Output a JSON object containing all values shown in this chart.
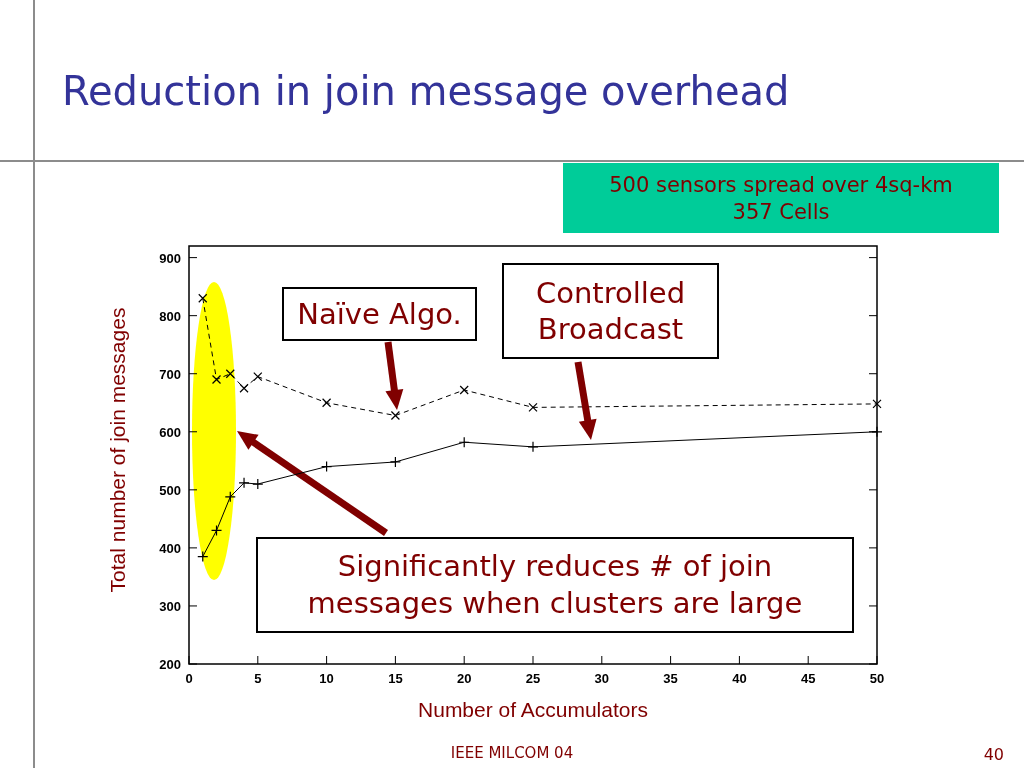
{
  "chart_data": {
    "type": "line",
    "title": "Reduction in join message overhead",
    "xlabel": "Number of Accumulators",
    "ylabel": "Total number of join messages",
    "x": [
      1,
      2,
      3,
      4,
      5,
      10,
      15,
      20,
      25,
      50
    ],
    "series": [
      {
        "name": "Naïve Algo.",
        "color": "#000000",
        "line_style": "dashed",
        "marker": "cross",
        "values": [
          830,
          690,
          700,
          675,
          695,
          650,
          628,
          672,
          642,
          648
        ]
      },
      {
        "name": "Controlled Broadcast",
        "color": "#000000",
        "line_style": "solid",
        "marker": "plus",
        "values": [
          385,
          430,
          488,
          512,
          510,
          540,
          548,
          582,
          574,
          600
        ]
      }
    ],
    "xlim": [
      0,
      50
    ],
    "xticks": [
      0,
      5,
      10,
      15,
      20,
      25,
      30,
      35,
      40,
      45,
      50
    ],
    "ylim": [
      200,
      920
    ],
    "yticks": [
      200,
      300,
      400,
      500,
      600,
      700,
      800,
      900
    ],
    "annotations": [
      "500 sensors spread over 4sq-km 357 Cells",
      "Significantly reduces # of join messages when clusters are large",
      "IEEE MILCOM 04",
      "40"
    ]
  }
}
